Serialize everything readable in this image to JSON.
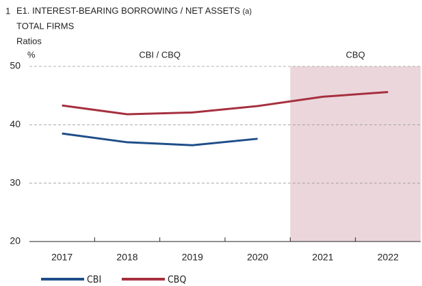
{
  "chart_data": {
    "type": "line",
    "figure_number": "1",
    "title": "E1. INTEREST-BEARING BORROWING / NET ASSETS",
    "title_note": "(a)",
    "subtitle": "TOTAL FIRMS",
    "subtitle2": "Ratios",
    "y_unit": "%",
    "categories": [
      "2017",
      "2018",
      "2019",
      "2020",
      "2021",
      "2022"
    ],
    "series": [
      {
        "name": "CBI",
        "color": "#1f4e89",
        "values": [
          38.5,
          37.0,
          36.5,
          37.6,
          null,
          null
        ]
      },
      {
        "name": "CBQ",
        "color": "#a6303f",
        "values": [
          43.3,
          41.8,
          42.1,
          43.2,
          44.8,
          45.6
        ]
      }
    ],
    "regions": [
      {
        "label": "CBI / CBQ",
        "from": "2017",
        "to": "2020",
        "shaded": false
      },
      {
        "label": "CBQ",
        "from": "2021",
        "to": "2022",
        "shaded": true,
        "color": "#ebd6db"
      }
    ],
    "ylim": [
      20,
      50
    ],
    "yticks": [
      20,
      30,
      40,
      50
    ],
    "grid": true
  }
}
